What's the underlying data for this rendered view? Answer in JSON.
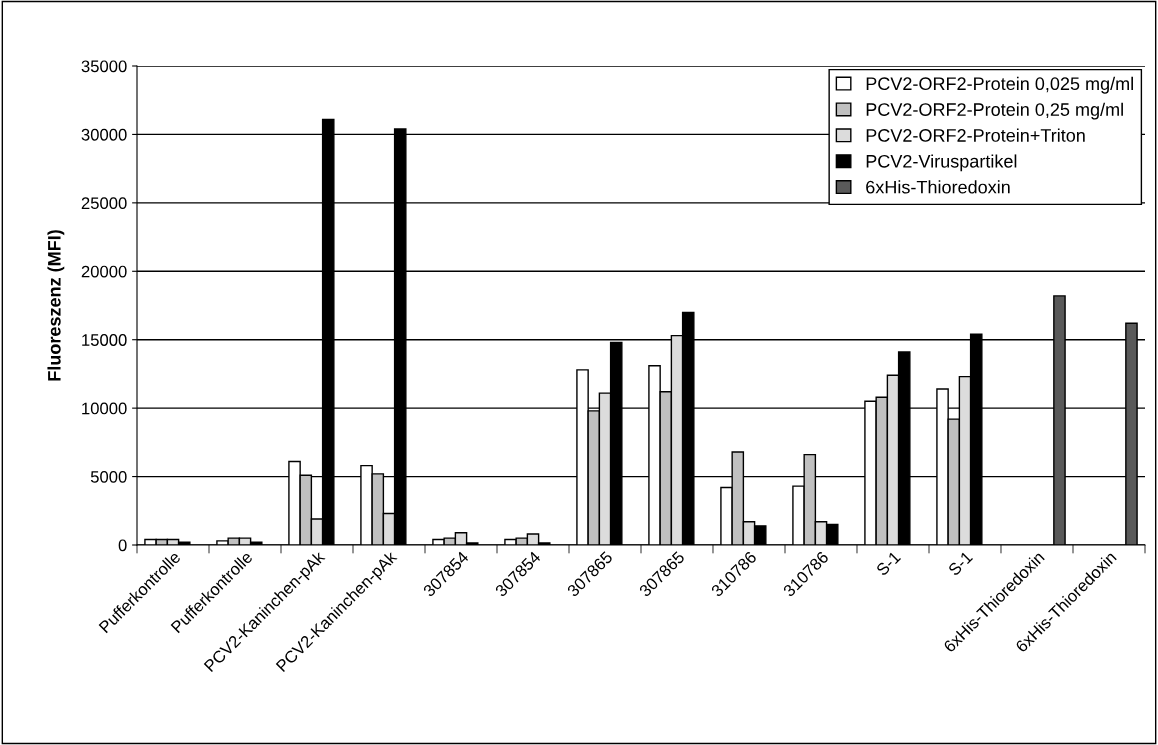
{
  "chart_data": {
    "type": "bar",
    "ylabel": "Fluoreszenz (MFI)",
    "categories": [
      "Pufferkontrolle",
      "Pufferkontrolle",
      "PCV2-Kaninchen-pAk",
      "PCV2-Kaninchen-pAk",
      "307854",
      "307854",
      "307865",
      "307865",
      "310786",
      "310786",
      "S-1",
      "S-1",
      "6xHis-Thioredoxin",
      "6xHis-Thioredoxin"
    ],
    "series": [
      {
        "name": "PCV2-ORF2-Protein 0,025 mg/ml",
        "color": "#ffffff",
        "values": [
          400,
          300,
          6100,
          5800,
          400,
          400,
          12800,
          13100,
          4200,
          4300,
          10500,
          11400,
          null,
          null
        ]
      },
      {
        "name": "PCV2-ORF2-Protein 0,25 mg/ml",
        "color": "#c0c0c0",
        "values": [
          400,
          500,
          5100,
          5200,
          500,
          500,
          9800,
          11200,
          6800,
          6600,
          10800,
          9200,
          null,
          null
        ]
      },
      {
        "name": "PCV2-ORF2-Protein+Triton",
        "color": "#dcdcdc",
        "values": [
          400,
          500,
          1900,
          2300,
          900,
          800,
          11100,
          15300,
          1700,
          1700,
          12400,
          12300,
          null,
          null
        ]
      },
      {
        "name": "PCV2-Viruspartikel",
        "color": "#000000",
        "values": [
          200,
          200,
          31100,
          30400,
          150,
          150,
          14800,
          17000,
          1400,
          1500,
          14100,
          15400,
          null,
          null
        ]
      },
      {
        "name": "6xHis-Thioredoxin",
        "color": "#5a5a5a",
        "values": [
          null,
          null,
          null,
          null,
          null,
          null,
          null,
          null,
          null,
          null,
          null,
          null,
          18200,
          16200
        ]
      }
    ],
    "ylim": [
      0,
      35000
    ],
    "yticks": [
      0,
      5000,
      10000,
      15000,
      20000,
      25000,
      30000,
      35000
    ],
    "grid": "y",
    "legend": "top right"
  }
}
